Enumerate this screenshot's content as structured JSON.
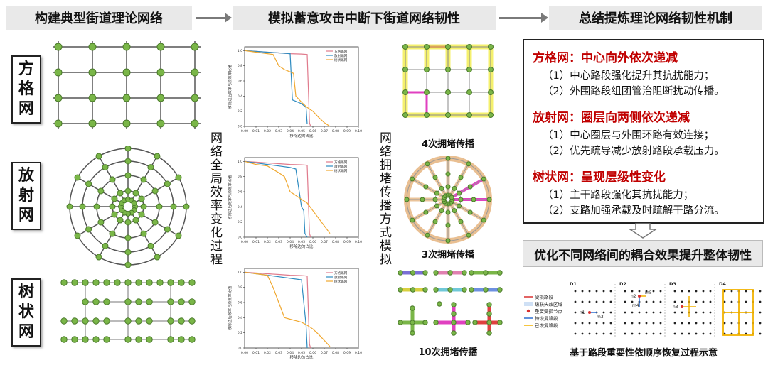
{
  "headers": {
    "left": "构建典型街道理论网络",
    "middle": "模拟蓄意攻击中断下街道网络韧性",
    "right": "总结提炼理论网络韧性机制"
  },
  "network_labels": {
    "grid": "方格网",
    "radial": "放射网",
    "tree": "树状网"
  },
  "side_labels": {
    "efficiency": "网络全局效率变化过程",
    "congestion": "网络拥堵传播方式模拟"
  },
  "chart_common": {
    "xlabel": "移除边的占比",
    "ylabel": "移除边后效率与原效率比值",
    "xticks": [
      "0.00",
      "0.01",
      "0.02",
      "0.03",
      "0.04",
      "0.05",
      "0.06",
      "0.07",
      "0.08",
      "0.09",
      "0.10"
    ],
    "yticks": [
      "0.0",
      "0.2",
      "0.4",
      "0.6",
      "0.8",
      "1.0"
    ],
    "legend": [
      "方格路网",
      "放射路网",
      "树状路网"
    ],
    "colors": [
      "#e07a8c",
      "#2e8bc0",
      "#f0a830"
    ]
  },
  "chart_data": [
    {
      "type": "line",
      "xlabel": "移除边的占比",
      "ylabel": "移除边后效率与原效率比值",
      "xlim": [
        0,
        0.1
      ],
      "ylim": [
        0,
        1.05
      ],
      "series": [
        {
          "name": "方格路网",
          "x": [
            0,
            0.01,
            0.02,
            0.03,
            0.04,
            0.05,
            0.055,
            0.057,
            0.058
          ],
          "y": [
            1.0,
            0.99,
            0.98,
            0.97,
            0.96,
            0.955,
            0.95,
            0.05,
            0.0
          ]
        },
        {
          "name": "放射路网",
          "x": [
            0,
            0.01,
            0.02,
            0.03,
            0.04,
            0.042,
            0.05,
            0.054,
            0.055
          ],
          "y": [
            1.0,
            0.99,
            0.98,
            0.97,
            0.96,
            0.35,
            0.3,
            0.25,
            0.03
          ]
        },
        {
          "name": "树状路网",
          "x": [
            0,
            0.01,
            0.02,
            0.025,
            0.03,
            0.035,
            0.04,
            0.043,
            0.045,
            0.05,
            0.055,
            0.06,
            0.065,
            0.07,
            0.075
          ],
          "y": [
            1.0,
            0.98,
            0.96,
            0.95,
            0.8,
            0.75,
            0.72,
            0.7,
            0.4,
            0.32,
            0.25,
            0.2,
            0.12,
            0.05,
            0.0
          ]
        }
      ]
    },
    {
      "type": "line",
      "xlabel": "移除边的占比",
      "ylabel": "移除边后效率与原效率比值",
      "xlim": [
        0,
        0.1
      ],
      "ylim": [
        0,
        1.05
      ],
      "series": [
        {
          "name": "方格路网",
          "x": [
            0,
            0.01,
            0.02,
            0.03,
            0.04,
            0.05,
            0.055,
            0.057,
            0.058
          ],
          "y": [
            1.0,
            0.99,
            0.98,
            0.97,
            0.96,
            0.955,
            0.95,
            0.05,
            0.0
          ]
        },
        {
          "name": "放射路网",
          "x": [
            0,
            0.01,
            0.02,
            0.03,
            0.04,
            0.045,
            0.05,
            0.052,
            0.053,
            0.055
          ],
          "y": [
            1.0,
            0.98,
            0.96,
            0.94,
            0.92,
            0.9,
            0.4,
            0.35,
            0.05,
            0.0
          ]
        },
        {
          "name": "树状路网",
          "x": [
            0,
            0.01,
            0.02,
            0.03,
            0.035,
            0.04,
            0.045,
            0.05,
            0.055,
            0.06,
            0.065,
            0.07,
            0.075
          ],
          "y": [
            1.0,
            0.96,
            0.94,
            0.85,
            0.8,
            0.6,
            0.55,
            0.5,
            0.45,
            0.35,
            0.25,
            0.15,
            0.05
          ]
        }
      ]
    },
    {
      "type": "line",
      "xlabel": "移除边的占比",
      "ylabel": "移除边后效率与原效率比值",
      "xlim": [
        0,
        0.1
      ],
      "ylim": [
        0,
        1.05
      ],
      "series": [
        {
          "name": "方格路网",
          "x": [
            0,
            0.01,
            0.02,
            0.03,
            0.04,
            0.05,
            0.055,
            0.057,
            0.058
          ],
          "y": [
            1.0,
            0.99,
            0.98,
            0.97,
            0.96,
            0.955,
            0.95,
            0.05,
            0.0
          ]
        },
        {
          "name": "放射路网",
          "x": [
            0,
            0.01,
            0.02,
            0.03,
            0.04,
            0.05,
            0.052,
            0.054,
            0.055
          ],
          "y": [
            1.0,
            0.98,
            0.96,
            0.94,
            0.92,
            0.9,
            0.6,
            0.3,
            0.0
          ]
        },
        {
          "name": "树状路网",
          "x": [
            0,
            0.01,
            0.02,
            0.025,
            0.03,
            0.035,
            0.04,
            0.045,
            0.05,
            0.055,
            0.06,
            0.065,
            0.07,
            0.075
          ],
          "y": [
            1.0,
            0.98,
            0.96,
            0.8,
            0.6,
            0.4,
            0.38,
            0.36,
            0.34,
            0.3,
            0.25,
            0.18,
            0.1,
            0.02
          ]
        }
      ]
    }
  ],
  "congestion_captions": {
    "grid": "4次拥堵传播",
    "radial": "3次拥堵传播",
    "tree": "10次拥堵传播"
  },
  "mechanisms": {
    "grid_title": "方格网：中心向外依次递减",
    "grid_item1": "（1）中心路段强化提升其抗扰能力；",
    "grid_item2": "（2）外围路段组团管治阻断扰动传播。",
    "radial_title": "放射网：圈层向两侧依次递减",
    "radial_item1": "（1）中心圈层与外围环路有效连接；",
    "radial_item2": "（2）优先疏导减少放射路段承载压力。",
    "tree_title": "树状网：呈现层级性变化",
    "tree_item1": "（1）主干路段强化其抗扰能力；",
    "tree_item2": "（2）支路加强承载及时疏解干路分流。"
  },
  "summary": "优化不同网络间的耦合效果提升整体韧性",
  "recovery": {
    "legend": [
      "受损路段",
      "级联失效区域",
      "重要受损节点",
      "待恢复路段",
      "已恢复路段"
    ],
    "legend_colors": [
      "#d93030",
      "#cfe0f5",
      "#d93030",
      "#2e6fd0",
      "#f2b200"
    ],
    "panels": [
      "D1",
      "D2",
      "D3",
      "D4"
    ],
    "node_labels": [
      "n1",
      "m3",
      "n2",
      "m5",
      "m4",
      "n3"
    ],
    "caption": "基于路段重要性依顺序恢复过程示意"
  },
  "colors": {
    "node_fill": "#7ab648",
    "node_stroke": "#4a7a2a",
    "edge": "#555555",
    "accent_red": "#c00000",
    "header_bg": "#e9e9e9"
  }
}
